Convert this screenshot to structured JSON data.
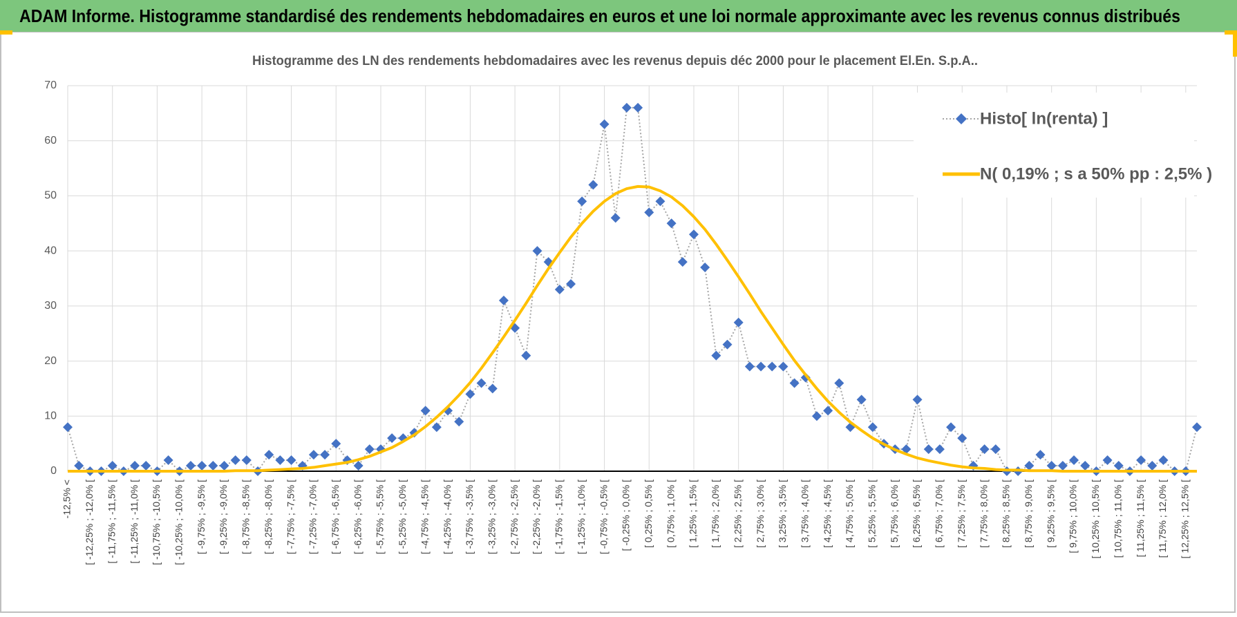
{
  "header": {
    "title": "ADAM Informe. Histogramme standardisé des rendements hebdomadaires en euros et une loi normale approximante avec les revenus connus distribués"
  },
  "chart_data": {
    "type": "line",
    "title": "Histogramme  des LN des rendements hebdomadaires avec les revenus depuis déc 2000 pour le placement El.En. S.p.A..",
    "categories": [
      "-12,5% <",
      null,
      "[ -12,25% ; -12,0% [",
      null,
      "[ -11,75% ; -11,5% [",
      null,
      "[ -11,25% ; -11,0% [",
      null,
      "[ -10,75% ; -10,5% [",
      null,
      "[ -10,25% ; -10,0% [",
      null,
      "[ -9,75% ; -9,5% [",
      null,
      "[ -9,25% ; -9,0% [",
      null,
      "[ -8,75% ; -8,5% [",
      null,
      "[ -8,25% ; -8,0% [",
      null,
      "[ -7,75% ; -7,5% [",
      null,
      "[ -7,25% ; -7,0% [",
      null,
      "[ -6,75% ; -6,5% [",
      null,
      "[ -6,25% ; -6,0% [",
      null,
      "[ -5,75% ; -5,5% [",
      null,
      "[ -5,25% ; -5,0% [",
      null,
      "[ -4,75% ; -4,5% [",
      null,
      "[ -4,25% ; -4,0% [",
      null,
      "[ -3,75% ; -3,5% [",
      null,
      "[ -3,25% ; -3,0% [",
      null,
      "[ -2,75% ; -2,5% [",
      null,
      "[ -2,25% ; -2,0% [",
      null,
      "[ -1,75% ; -1,5% [",
      null,
      "[ -1,25% ; -1,0% [",
      null,
      "[ -0,75% ; -0,5% [",
      null,
      "[ -0,25% ; 0,0% [",
      null,
      "[ 0,25% ; 0,5% [",
      null,
      "[ 0,75% ; 1,0% [",
      null,
      "[ 1,25% ; 1,5% [",
      null,
      "[ 1,75% ; 2,0% [",
      null,
      "[ 2,25% ; 2,5% [",
      null,
      "[ 2,75% ; 3,0% [",
      null,
      "[ 3,25% ; 3,5% [",
      null,
      "[ 3,75% ; 4,0% [",
      null,
      "[ 4,25% ; 4,5% [",
      null,
      "[ 4,75% ; 5,0% [",
      null,
      "[ 5,25% ; 5,5% [",
      null,
      "[ 5,75% ; 6,0% [",
      null,
      "[ 6,25% ; 6,5% [",
      null,
      "[ 6,75% ; 7,0% [",
      null,
      "[ 7,25% ; 7,5% [",
      null,
      "[ 7,75% ; 8,0% [",
      null,
      "[ 8,25% ; 8,5% [",
      null,
      "[ 8,75% ; 9,0% [",
      null,
      "[ 9,25% ; 9,5% [",
      null,
      "[ 9,75% ; 10,0% [",
      null,
      "[ 10,25% ; 10,5% [",
      null,
      "[ 10,75% ; 11,0% [",
      null,
      "[ 11,25% ; 11,5% [",
      null,
      "[ 11,75% ; 12,0% [",
      null,
      "[ 12,25% ; 12,5% [",
      null
    ],
    "series": [
      {
        "name": "Histo[ ln(renta) ]",
        "color": "#4472c4",
        "line_color": "#a5a5a5",
        "marker": "diamond",
        "dash": "dotted",
        "values": [
          8,
          1,
          0,
          0,
          1,
          0,
          1,
          1,
          0,
          2,
          0,
          1,
          1,
          1,
          1,
          2,
          2,
          0,
          3,
          2,
          2,
          1,
          3,
          3,
          5,
          2,
          1,
          4,
          4,
          6,
          6,
          7,
          11,
          8,
          11,
          9,
          14,
          16,
          15,
          31,
          26,
          21,
          40,
          38,
          33,
          34,
          49,
          52,
          63,
          46,
          66,
          66,
          47,
          49,
          45,
          38,
          43,
          37,
          21,
          23,
          27,
          19,
          19,
          19,
          19,
          16,
          17,
          10,
          11,
          16,
          8,
          13,
          8,
          5,
          4,
          4,
          13,
          4,
          4,
          8,
          6,
          1,
          4,
          4,
          0,
          0,
          1,
          3,
          1,
          1,
          2,
          1,
          0,
          2,
          1,
          0,
          2,
          1,
          2,
          0,
          0,
          8
        ]
      },
      {
        "name": "N( 0,19% ; s a 50% pp : 2,5% )",
        "color": "#ffc000",
        "marker": "none",
        "dash": "solid",
        "values": [
          0,
          0,
          0,
          0,
          0,
          0,
          0,
          0,
          0,
          0,
          0,
          0,
          0,
          0,
          0,
          0.1,
          0.1,
          0.1,
          0.2,
          0.3,
          0.4,
          0.5,
          0.7,
          1.0,
          1.3,
          1.6,
          2.1,
          2.7,
          3.5,
          4.3,
          5.4,
          6.6,
          8.1,
          9.8,
          11.7,
          13.8,
          16.1,
          18.7,
          21.5,
          24.4,
          27.4,
          30.5,
          33.7,
          36.8,
          39.7,
          42.5,
          45.0,
          47.2,
          49.0,
          50.4,
          51.3,
          51.7,
          51.6,
          50.9,
          49.8,
          48.2,
          46.2,
          43.9,
          41.2,
          38.3,
          35.3,
          32.2,
          29.0,
          26.0,
          23.0,
          20.1,
          17.5,
          15.0,
          12.7,
          10.7,
          8.9,
          7.4,
          6.0,
          4.9,
          3.9,
          3.1,
          2.4,
          1.9,
          1.5,
          1.1,
          0.8,
          0.6,
          0.5,
          0.3,
          0.2,
          0.2,
          0.1,
          0.1,
          0.1,
          0,
          0,
          0,
          0,
          0,
          0,
          0,
          0,
          0,
          0,
          0,
          0,
          0
        ]
      }
    ],
    "ylim": [
      0,
      70
    ],
    "yticks": [
      0,
      10,
      20,
      30,
      40,
      50,
      60,
      70
    ],
    "grid": true,
    "legend": "upper right"
  }
}
